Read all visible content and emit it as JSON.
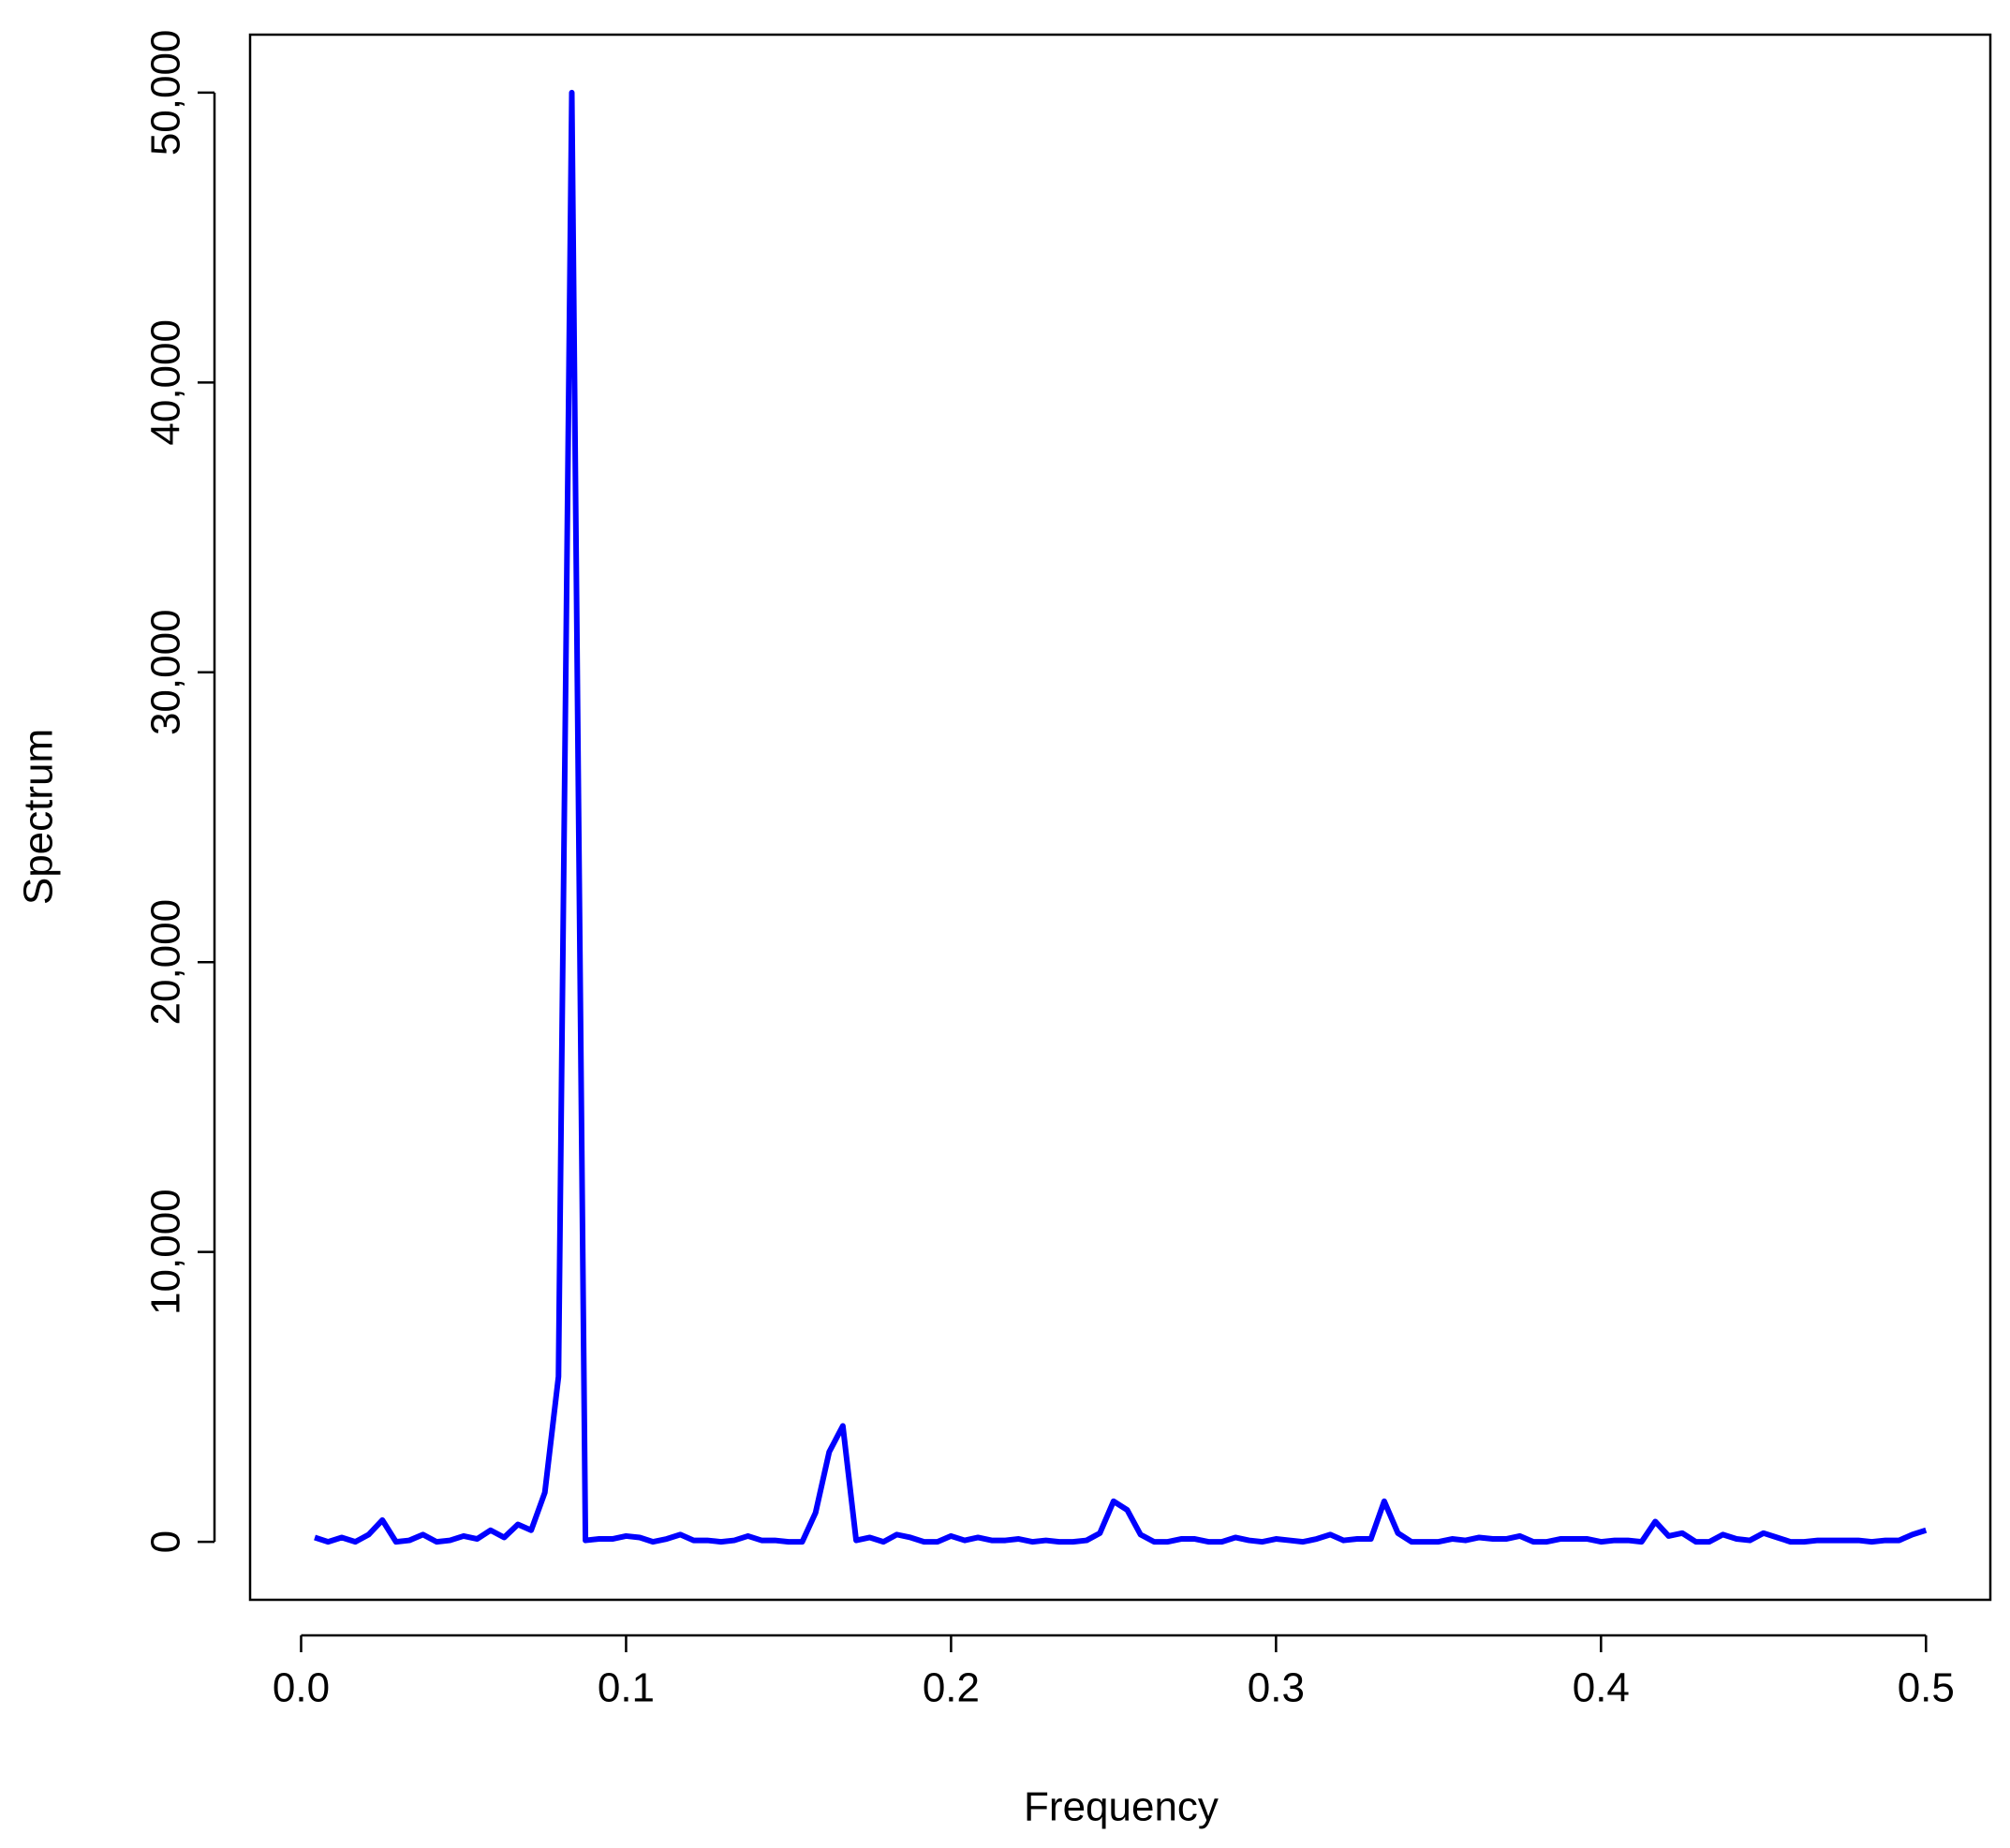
{
  "chart_data": {
    "type": "line",
    "x_label": "Frequency",
    "y_label": "Spectrum",
    "x": [
      0.0042,
      0.0083,
      0.0125,
      0.0167,
      0.0208,
      0.025,
      0.0292,
      0.0333,
      0.0375,
      0.0417,
      0.0458,
      0.05,
      0.0542,
      0.0583,
      0.0625,
      0.0667,
      0.0708,
      0.075,
      0.0792,
      0.0833,
      0.0875,
      0.0917,
      0.0958,
      0.1,
      0.1042,
      0.1083,
      0.1125,
      0.1167,
      0.1208,
      0.125,
      0.1292,
      0.1333,
      0.1375,
      0.1417,
      0.1458,
      0.15,
      0.1542,
      0.1583,
      0.1625,
      0.1667,
      0.1708,
      0.175,
      0.1792,
      0.1833,
      0.1875,
      0.1917,
      0.1958,
      0.2,
      0.2042,
      0.2083,
      0.2125,
      0.2167,
      0.2208,
      0.225,
      0.2292,
      0.2333,
      0.2375,
      0.2417,
      0.2458,
      0.25,
      0.2542,
      0.2583,
      0.2625,
      0.2667,
      0.2708,
      0.275,
      0.2792,
      0.2833,
      0.2875,
      0.2917,
      0.2958,
      0.3,
      0.3042,
      0.3083,
      0.3125,
      0.3167,
      0.3208,
      0.325,
      0.3292,
      0.3333,
      0.3375,
      0.3417,
      0.3458,
      0.35,
      0.3542,
      0.3583,
      0.3625,
      0.3667,
      0.3708,
      0.375,
      0.3792,
      0.3833,
      0.3875,
      0.3917,
      0.3958,
      0.4,
      0.4042,
      0.4083,
      0.4125,
      0.4167,
      0.4208,
      0.425,
      0.4292,
      0.4333,
      0.4375,
      0.4417,
      0.4458,
      0.45,
      0.4542,
      0.4583,
      0.4625,
      0.4667,
      0.4708,
      0.475,
      0.4792,
      0.4833,
      0.4875,
      0.4917,
      0.4958,
      0.5
    ],
    "series": [
      {
        "color": "#0000ff",
        "values": [
          150,
          0,
          150,
          0,
          250,
          750,
          0,
          50,
          250,
          0,
          50,
          200,
          100,
          400,
          150,
          600,
          400,
          1700,
          5700,
          50000,
          50,
          100,
          100,
          200,
          150,
          0,
          100,
          250,
          50,
          50,
          0,
          50,
          200,
          50,
          50,
          0,
          0,
          1000,
          3100,
          4000,
          50,
          150,
          0,
          250,
          150,
          0,
          0,
          200,
          50,
          150,
          50,
          50,
          100,
          0,
          50,
          0,
          0,
          50,
          300,
          1400,
          1100,
          250,
          0,
          0,
          100,
          100,
          0,
          0,
          150,
          50,
          0,
          100,
          50,
          0,
          100,
          250,
          50,
          100,
          100,
          1400,
          300,
          0,
          0,
          0,
          100,
          50,
          150,
          100,
          100,
          200,
          0,
          0,
          100,
          100,
          100,
          0,
          50,
          50,
          0,
          700,
          200,
          300,
          0,
          0,
          250,
          100,
          50,
          300,
          150,
          0,
          0,
          50,
          50,
          50,
          50,
          0,
          50,
          50,
          250,
          400
        ]
      }
    ],
    "xlim": [
      -0.0157,
      0.5198
    ],
    "ylim": [
      -2000,
      52000
    ],
    "xticks": [
      {
        "value": 0,
        "label": "0.0"
      },
      0.1,
      0.2,
      0.3,
      0.4,
      0.5
    ],
    "yticks": [
      0,
      {
        "value": 10000,
        "label": "10,000"
      },
      {
        "value": 20000,
        "label": "20,000"
      },
      {
        "value": 30000,
        "label": "30,000"
      },
      {
        "value": 40000,
        "label": "40,000"
      },
      {
        "value": 50000,
        "label": "50,000"
      }
    ],
    "grid": false
  }
}
